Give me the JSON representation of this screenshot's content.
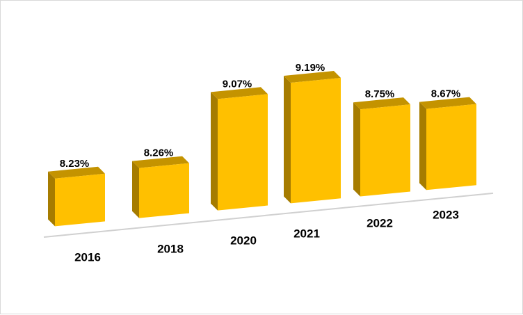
{
  "chart_data": {
    "type": "bar",
    "title": "",
    "xlabel": "",
    "ylabel": "",
    "categories": [
      "2016",
      "2018",
      "2020",
      "2021",
      "2022",
      "2023"
    ],
    "values": [
      8.23,
      8.26,
      9.07,
      9.19,
      8.75,
      8.67
    ],
    "value_labels": [
      "8.23%",
      "8.26%",
      "9.07%",
      "9.19%",
      "8.75%",
      "8.67%"
    ],
    "style": "3d-perspective",
    "grid": false,
    "legend": "none",
    "colors": {
      "front": "#FFC000",
      "top": "#C49300",
      "side": "#A67C00",
      "floor": "#d0d0d0"
    }
  }
}
